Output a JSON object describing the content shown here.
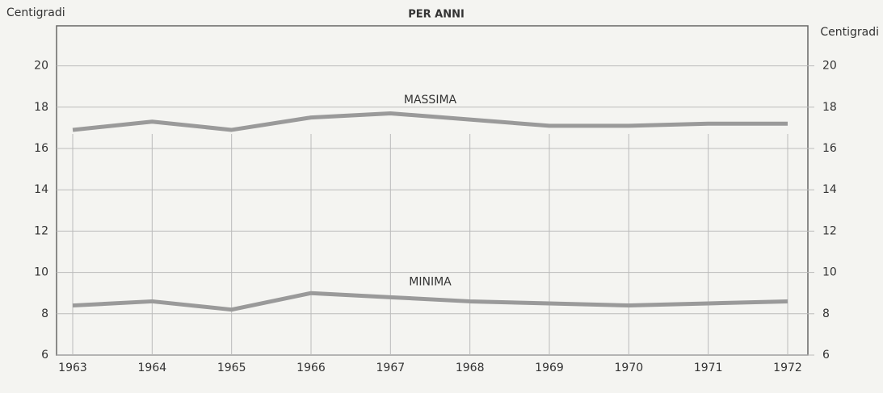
{
  "chart_data": {
    "type": "line",
    "title": "PER ANNI",
    "y_label": "Centigradi",
    "y2_label": "Centigradi",
    "categories": [
      "1963",
      "1964",
      "1965",
      "1966",
      "1967",
      "1968",
      "1969",
      "1970",
      "1971",
      "1972"
    ],
    "series": [
      {
        "name": "MASSIMA",
        "color": "#9a9a9a",
        "values": [
          16.9,
          17.3,
          16.9,
          17.5,
          17.7,
          17.4,
          17.1,
          17.1,
          17.2,
          17.2
        ]
      },
      {
        "name": "MINIMA",
        "color": "#9a9a9a",
        "values": [
          8.4,
          8.6,
          8.2,
          9.0,
          8.8,
          8.6,
          8.5,
          8.4,
          8.5,
          8.6
        ]
      }
    ],
    "ylim": [
      6,
      21
    ],
    "yticks": [
      6,
      8,
      10,
      12,
      14,
      16,
      18,
      20
    ],
    "y2lim": [
      6,
      21
    ],
    "y2ticks": [
      6,
      8,
      10,
      12,
      14,
      16,
      18,
      20
    ],
    "grid": true
  }
}
